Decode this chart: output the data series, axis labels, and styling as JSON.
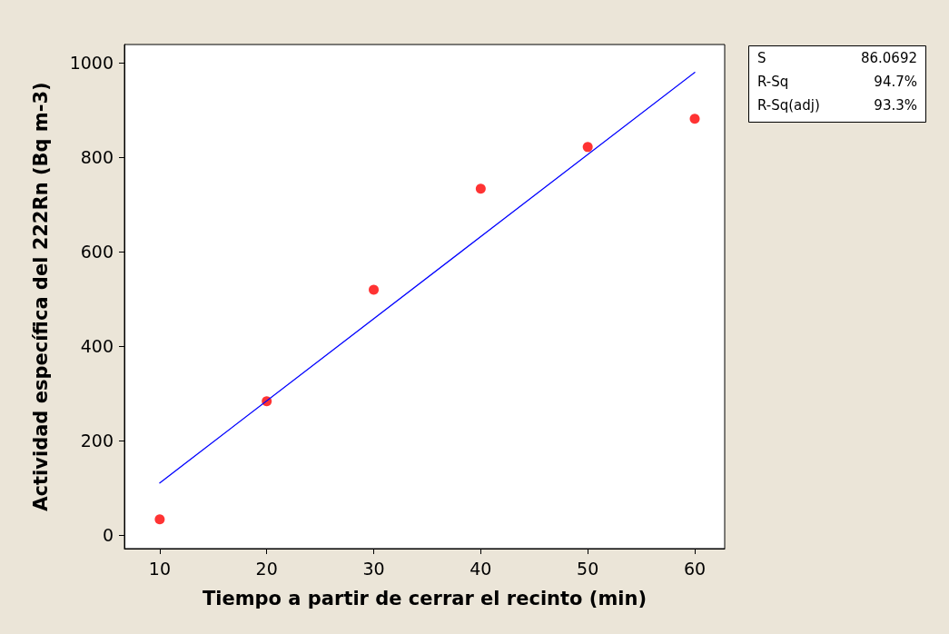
{
  "chart_data": {
    "type": "scatter",
    "xlabel": "Tiempo a partir de cerrar el recinto (min)",
    "ylabel": "Actividad específica del 222Rn (Bq m-3)",
    "x": [
      10,
      20,
      30,
      40,
      50,
      60
    ],
    "series": [
      {
        "color": "#ff0000",
        "marker": "circle",
        "values": [
          33,
          283,
          519,
          733,
          821,
          881
        ]
      },
      {
        "type": "line",
        "color": "#0000ff",
        "marker": "none",
        "line_style": "solid",
        "x": [
          10,
          60
        ],
        "values": [
          110,
          979
        ]
      }
    ],
    "xlim": [
      6.7,
      62.8
    ],
    "xticks": [
      10,
      20,
      30,
      40,
      50,
      60
    ],
    "ylim": [
      -29,
      1038
    ],
    "yticks": [
      0,
      200,
      400,
      600,
      800,
      1000
    ],
    "grid": false,
    "annotations": [
      "S",
      "86.0692",
      "R-Sq",
      "94.7%",
      "R-Sq(adj)",
      "93.3%"
    ]
  }
}
